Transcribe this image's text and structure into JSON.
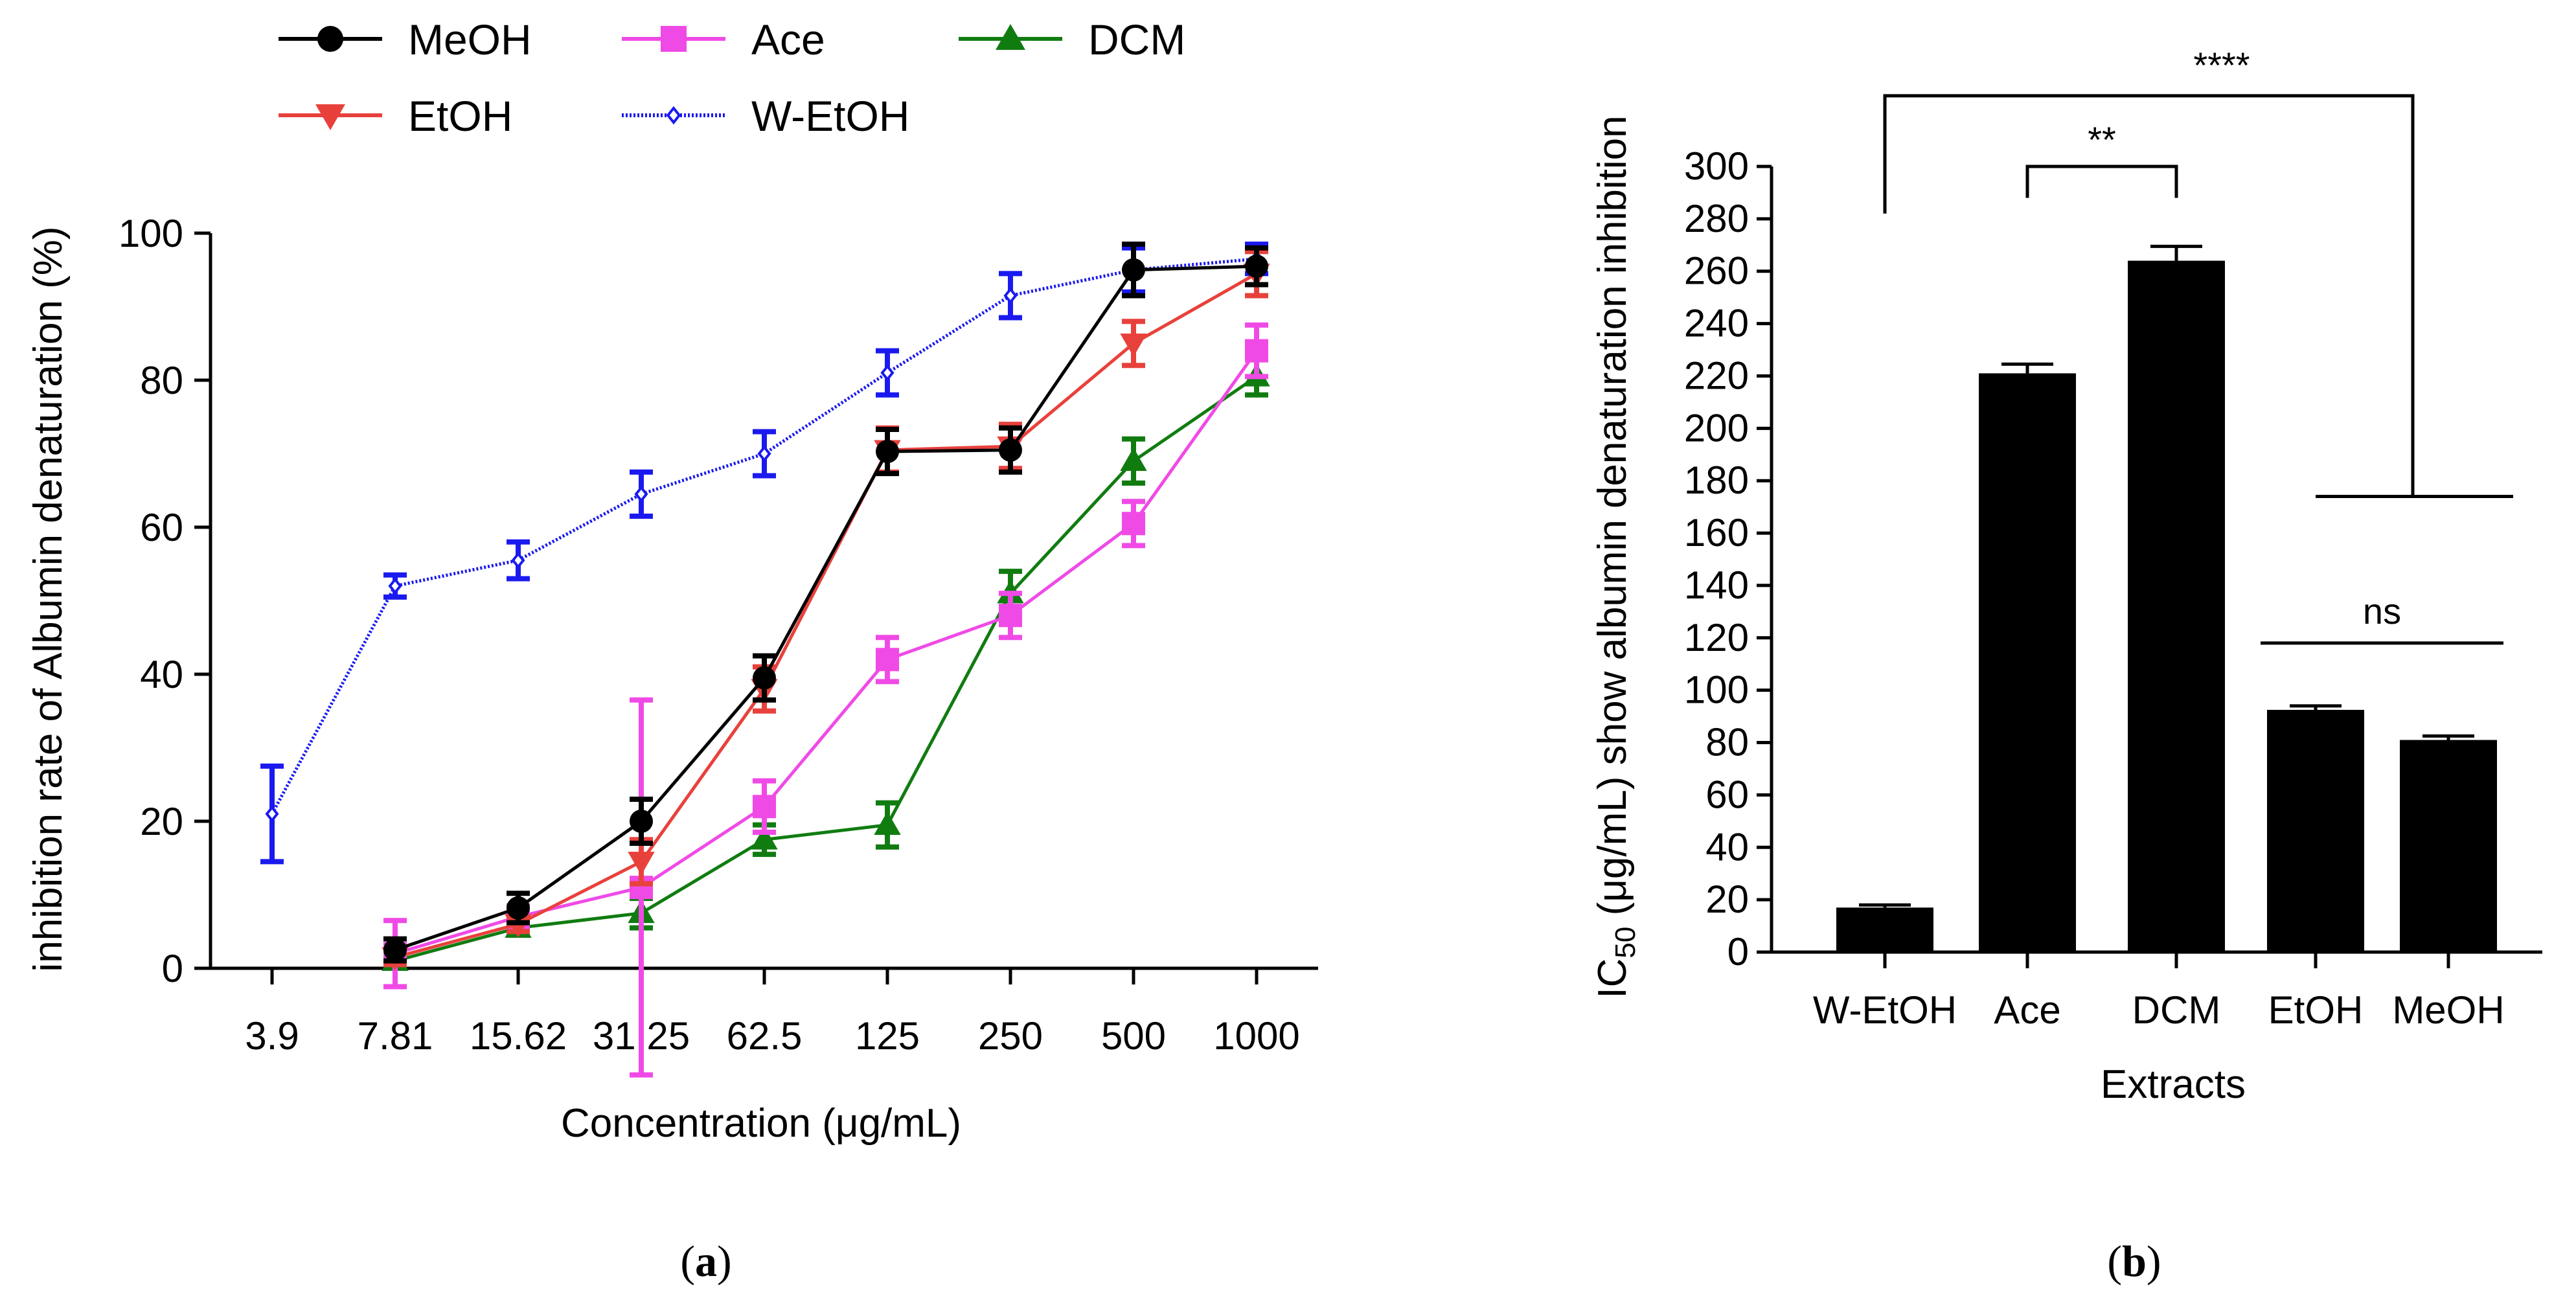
{
  "figure": {
    "panel_a_label_open": "(",
    "panel_a_label_letter": "a",
    "panel_a_label_close": ")",
    "panel_b_label_open": "(",
    "panel_b_label_letter": "b",
    "panel_b_label_close": ")"
  },
  "chart_data": [
    {
      "type": "line",
      "panel": "a",
      "title": "",
      "xlabel": "Concentration (μg/mL)",
      "ylabel": "inhibition rate of Albumin denaturation  (%)",
      "categories": [
        "3.9",
        "7.81",
        "15.62",
        "31.25",
        "62.5",
        "125",
        "250",
        "500",
        "1000"
      ],
      "ylim": [
        0,
        100
      ],
      "yticks": [
        "0",
        "20",
        "40",
        "60",
        "80",
        "100"
      ],
      "legend_position": "top",
      "series": [
        {
          "name": "MeOH",
          "color": "#000000",
          "marker": "circle",
          "line": "solid",
          "values": [
            null,
            2.5,
            8.2,
            20.0,
            39.5,
            70.3,
            70.5,
            95.0,
            95.5
          ],
          "errors": [
            null,
            1.5,
            2.0,
            3.0,
            3.0,
            3.0,
            3.0,
            3.5,
            2.5
          ]
        },
        {
          "name": "EtOH",
          "color": "#e8413c",
          "marker": "triangle-down",
          "line": "solid",
          "values": [
            null,
            1.5,
            6.0,
            14.5,
            38.0,
            70.5,
            71.0,
            85.0,
            94.5
          ],
          "errors": [
            null,
            1.0,
            1.0,
            3.0,
            3.0,
            3.0,
            3.0,
            3.0,
            3.0
          ]
        },
        {
          "name": "Ace",
          "color": "#f04ae6",
          "marker": "square",
          "line": "solid",
          "values": [
            null,
            2.0,
            7.0,
            11.0,
            22.0,
            42.0,
            48.0,
            60.5,
            84.0
          ],
          "errors": [
            null,
            4.5,
            1.5,
            25.5,
            3.5,
            3.0,
            3.0,
            3.0,
            3.5
          ]
        },
        {
          "name": "DCM",
          "color": "#107c10",
          "marker": "triangle-up",
          "line": "solid",
          "values": [
            null,
            1.0,
            5.5,
            7.5,
            17.5,
            19.5,
            51.0,
            69.0,
            80.5
          ],
          "errors": [
            null,
            0.8,
            1.0,
            2.0,
            2.0,
            3.0,
            3.0,
            3.0,
            2.5
          ]
        },
        {
          "name": "W-EtOH",
          "color": "#1a1af0",
          "marker": "diamond-open",
          "line": "dashed",
          "values": [
            21.0,
            52.0,
            55.5,
            64.5,
            70.0,
            81.0,
            91.5,
            95.0,
            96.5
          ],
          "errors": [
            6.5,
            1.5,
            2.5,
            3.0,
            3.0,
            3.0,
            3.0,
            3.0,
            2.0
          ]
        }
      ]
    },
    {
      "type": "bar",
      "panel": "b",
      "title": "",
      "xlabel": "Extracts",
      "ylabel_prefix": "IC",
      "ylabel_subscript": "50",
      "ylabel_rest": " (μg/mL) show albumin denaturation inhibition",
      "categories": [
        "W-EtOH",
        "Ace",
        "DCM",
        "EtOH",
        "MeOH"
      ],
      "values": [
        17,
        221,
        264,
        92.5,
        81
      ],
      "errors": [
        1,
        3.5,
        5.5,
        1.5,
        1.5
      ],
      "bar_color": "#000000",
      "ylim": [
        0,
        300
      ],
      "ytick_step": 20,
      "yticks": [
        "0",
        "20",
        "40",
        "60",
        "80",
        "100",
        "120",
        "140",
        "160",
        "180",
        "200",
        "220",
        "240",
        "260",
        "280",
        "300"
      ],
      "significance": [
        {
          "label": "****",
          "from": "W-EtOH",
          "to": "others",
          "y": 327
        },
        {
          "label": "**",
          "from": "Ace",
          "to": "DCM",
          "y": 300
        },
        {
          "label": "ns",
          "from": "EtOH",
          "to": "MeOH",
          "y": 118
        }
      ]
    }
  ]
}
